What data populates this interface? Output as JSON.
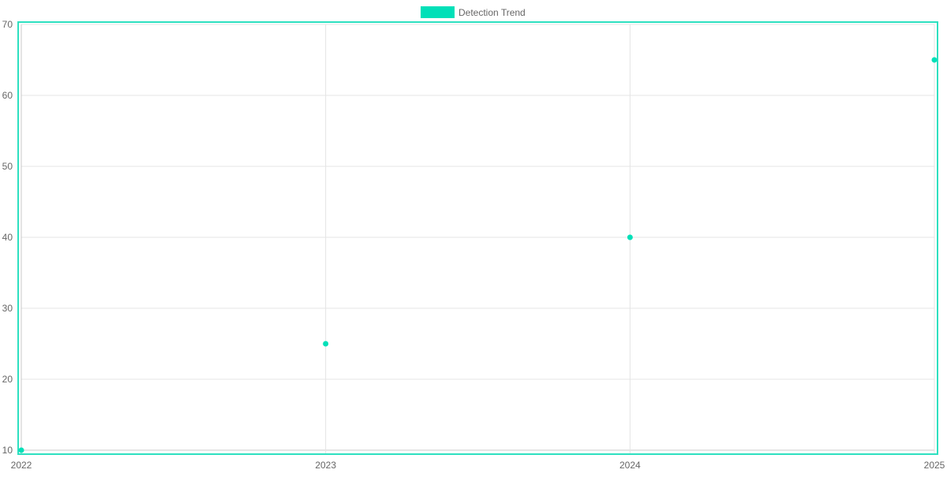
{
  "chart_data": {
    "type": "scatter",
    "categories": [
      "2022",
      "2023",
      "2024",
      "2025"
    ],
    "series": [
      {
        "name": "Detection Trend",
        "values": [
          10,
          25,
          40,
          65
        ],
        "color": "#00e0b8"
      }
    ],
    "yticks": [
      10,
      20,
      30,
      40,
      50,
      60,
      70
    ],
    "ylim": [
      10,
      70
    ],
    "grid": true,
    "legend": "top-center",
    "title": "",
    "xlabel": "",
    "ylabel": ""
  }
}
